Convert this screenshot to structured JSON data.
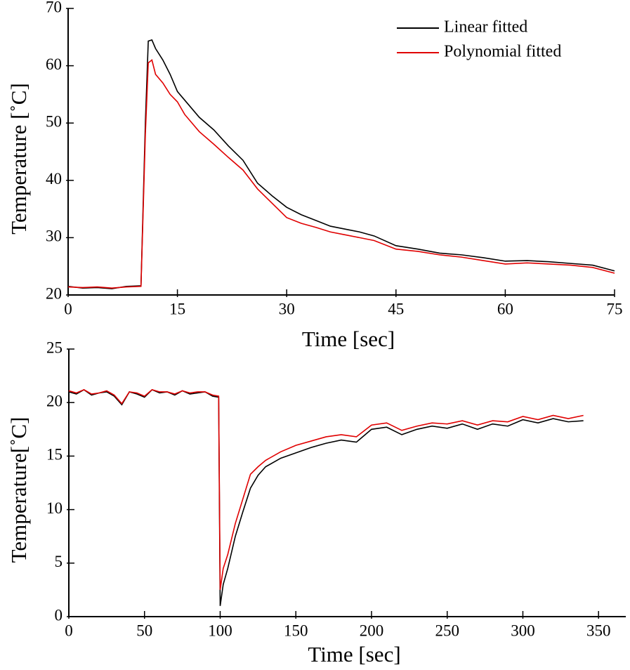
{
  "chart_data": [
    {
      "type": "line",
      "x_label": "Time [sec]",
      "y_label": "Temperature [˚C]",
      "x": [
        0,
        2,
        4,
        6,
        8,
        10,
        10.6,
        11,
        11.5,
        12,
        13,
        14,
        15,
        16,
        18,
        20,
        22,
        24,
        26,
        28,
        30,
        32,
        34,
        36,
        38,
        40,
        42,
        45,
        48,
        51,
        54,
        57,
        60,
        63,
        66,
        69,
        72,
        75
      ],
      "series": [
        {
          "name": "Linear fitted",
          "color": "#000000",
          "values": [
            21.5,
            21.2,
            21.3,
            21.1,
            21.5,
            21.6,
            50,
            64.3,
            64.5,
            63,
            61,
            58.5,
            55.5,
            54,
            51,
            48.8,
            46,
            43.5,
            39.5,
            37.3,
            35.3,
            34,
            33,
            32,
            31.5,
            31,
            30.3,
            28.6,
            28,
            27.3,
            27,
            26.5,
            25.9,
            26,
            25.8,
            25.5,
            25.2,
            24.2
          ]
        },
        {
          "name": "Polynomial fitted",
          "color": "#e00000",
          "values": [
            21.4,
            21.3,
            21.4,
            21.2,
            21.4,
            21.5,
            48,
            60.5,
            61,
            58.5,
            57,
            55,
            53.7,
            51.5,
            48.5,
            46.3,
            44,
            41.8,
            38.5,
            36,
            33.5,
            32.5,
            31.8,
            31,
            30.5,
            30,
            29.5,
            28,
            27.6,
            27,
            26.6,
            26,
            25.4,
            25.6,
            25.4,
            25.2,
            24.8,
            23.8
          ]
        }
      ],
      "xlim": [
        0,
        75
      ],
      "xticks": [
        0,
        15,
        30,
        45,
        60,
        75
      ],
      "ylim": [
        20,
        70
      ],
      "yticks": [
        20,
        30,
        40,
        50,
        60,
        70
      ]
    },
    {
      "type": "line",
      "x_label": "Time [sec]",
      "y_label": "Temperature[˚C]",
      "x": [
        0,
        5,
        10,
        15,
        20,
        25,
        30,
        35,
        40,
        45,
        50,
        55,
        60,
        65,
        70,
        75,
        80,
        85,
        90,
        95,
        99,
        100,
        102,
        105,
        110,
        115,
        120,
        125,
        130,
        140,
        150,
        160,
        170,
        180,
        190,
        200,
        210,
        220,
        230,
        240,
        250,
        260,
        270,
        280,
        290,
        300,
        310,
        320,
        330,
        340
      ],
      "series": [
        {
          "color": "#000000",
          "values": [
            21,
            20.8,
            21.2,
            20.7,
            20.9,
            21,
            20.6,
            19.8,
            21,
            20.8,
            20.5,
            21.2,
            20.9,
            21,
            20.7,
            21.1,
            20.8,
            20.9,
            21,
            20.6,
            20.5,
            1,
            3,
            4.5,
            7.5,
            9.8,
            12,
            13.2,
            14,
            14.8,
            15.3,
            15.8,
            16.2,
            16.5,
            16.3,
            17.5,
            17.7,
            17,
            17.5,
            17.8,
            17.6,
            18,
            17.5,
            18,
            17.8,
            18.4,
            18.1,
            18.5,
            18.2,
            18.3
          ]
        },
        {
          "color": "#e00000",
          "values": [
            21.1,
            20.9,
            21.2,
            20.8,
            20.9,
            21.1,
            20.7,
            19.9,
            21,
            20.9,
            20.6,
            21.2,
            21,
            21,
            20.8,
            21.1,
            20.9,
            21,
            21,
            20.7,
            20.6,
            2.5,
            4.5,
            5.8,
            8.7,
            11,
            13.3,
            14,
            14.6,
            15.4,
            16,
            16.4,
            16.8,
            17,
            16.8,
            17.9,
            18.1,
            17.4,
            17.8,
            18.1,
            18,
            18.3,
            17.9,
            18.3,
            18.2,
            18.7,
            18.4,
            18.8,
            18.5,
            18.8
          ]
        }
      ],
      "xlim": [
        0,
        368
      ],
      "xticks": [
        0,
        50,
        100,
        150,
        200,
        250,
        300,
        350
      ],
      "ylim": [
        0,
        25
      ],
      "yticks": [
        0,
        5,
        10,
        15,
        20,
        25
      ]
    }
  ]
}
